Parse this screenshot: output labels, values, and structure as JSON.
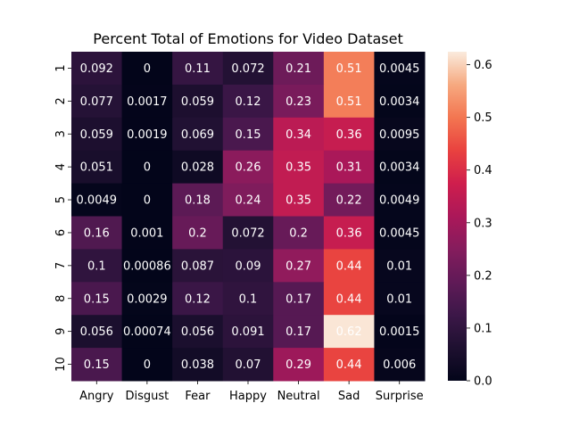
{
  "chart_data": {
    "type": "heatmap",
    "title": "Percent Total of Emotions for Video Dataset",
    "xlabel": "",
    "ylabel": "",
    "columns": [
      "Angry",
      "Disgust",
      "Fear",
      "Happy",
      "Neutral",
      "Sad",
      "Surprise"
    ],
    "rows": [
      "1",
      "2",
      "3",
      "4",
      "5",
      "6",
      "7",
      "8",
      "9",
      "10"
    ],
    "values": [
      [
        "0.092",
        "0",
        "0.11",
        "0.072",
        "0.21",
        "0.51",
        "0.0045"
      ],
      [
        "0.077",
        "0.0017",
        "0.059",
        "0.12",
        "0.23",
        "0.51",
        "0.0034"
      ],
      [
        "0.059",
        "0.0019",
        "0.069",
        "0.15",
        "0.34",
        "0.36",
        "0.0095"
      ],
      [
        "0.051",
        "0",
        "0.028",
        "0.26",
        "0.35",
        "0.31",
        "0.0034"
      ],
      [
        "0.0049",
        "0",
        "0.18",
        "0.24",
        "0.35",
        "0.22",
        "0.0049"
      ],
      [
        "0.16",
        "0.001",
        "0.2",
        "0.072",
        "0.2",
        "0.36",
        "0.0045"
      ],
      [
        "0.1",
        "0.00086",
        "0.087",
        "0.09",
        "0.27",
        "0.44",
        "0.01"
      ],
      [
        "0.15",
        "0.0029",
        "0.12",
        "0.1",
        "0.17",
        "0.44",
        "0.01"
      ],
      [
        "0.056",
        "0.00074",
        "0.056",
        "0.091",
        "0.17",
        "0.62",
        "0.0015"
      ],
      [
        "0.15",
        "0",
        "0.038",
        "0.07",
        "0.29",
        "0.44",
        "0.006"
      ]
    ],
    "colorbar": {
      "range": [
        0,
        0.6247
      ],
      "ticks": [
        "0.0",
        "0.1",
        "0.2",
        "0.3",
        "0.4",
        "0.5",
        "0.6"
      ],
      "colormap": "rocket"
    },
    "annotations": "cell values shown in white"
  }
}
